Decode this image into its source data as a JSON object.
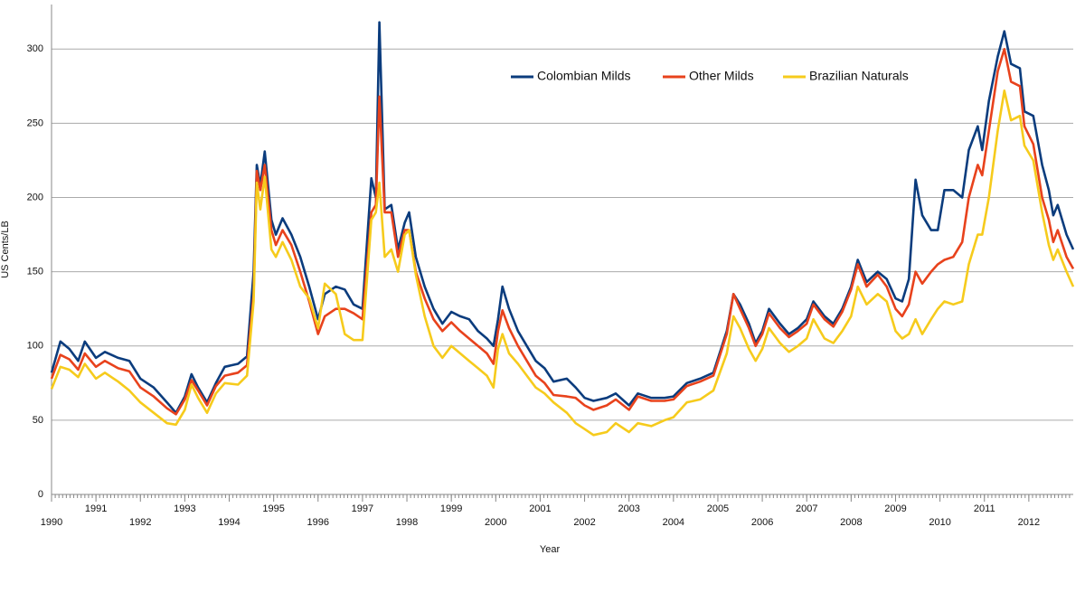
{
  "chart_data": {
    "type": "line",
    "y_label": "US Cents/LB",
    "x_label": "Year",
    "xlim": [
      1990,
      2013
    ],
    "ylim": [
      0,
      330
    ],
    "xticks": [
      1990,
      1991,
      1992,
      1993,
      1994,
      1995,
      1996,
      1997,
      1998,
      1999,
      2000,
      2001,
      2002,
      2003,
      2004,
      2005,
      2006,
      2007,
      2008,
      2009,
      2010,
      2011,
      2012
    ],
    "yticks": [
      0,
      50,
      100,
      150,
      200,
      250,
      300
    ],
    "grid": true,
    "x": [
      1990.0,
      1990.2,
      1990.4,
      1990.6,
      1990.75,
      1991.0,
      1991.2,
      1991.5,
      1991.75,
      1992.0,
      1992.3,
      1992.6,
      1992.8,
      1993.0,
      1993.15,
      1993.3,
      1993.5,
      1993.7,
      1993.9,
      1994.2,
      1994.4,
      1994.55,
      1994.62,
      1994.7,
      1994.8,
      1994.95,
      1995.05,
      1995.2,
      1995.4,
      1995.6,
      1995.8,
      1996.0,
      1996.15,
      1996.4,
      1996.6,
      1996.8,
      1997.0,
      1997.2,
      1997.3,
      1997.38,
      1997.5,
      1997.65,
      1997.8,
      1997.95,
      1998.05,
      1998.2,
      1998.4,
      1998.6,
      1998.8,
      1999.0,
      1999.2,
      1999.4,
      1999.6,
      1999.8,
      1999.95,
      2000.05,
      2000.15,
      2000.3,
      2000.5,
      2000.7,
      2000.9,
      2001.1,
      2001.3,
      2001.6,
      2001.8,
      2002.0,
      2002.2,
      2002.5,
      2002.7,
      2003.0,
      2003.2,
      2003.5,
      2003.8,
      2004.0,
      2004.3,
      2004.6,
      2004.9,
      2005.2,
      2005.35,
      2005.5,
      2005.7,
      2005.85,
      2006.0,
      2006.15,
      2006.4,
      2006.6,
      2006.8,
      2007.0,
      2007.15,
      2007.4,
      2007.6,
      2007.8,
      2008.0,
      2008.15,
      2008.35,
      2008.6,
      2008.8,
      2009.0,
      2009.15,
      2009.3,
      2009.45,
      2009.6,
      2009.8,
      2009.95,
      2010.1,
      2010.3,
      2010.5,
      2010.65,
      2010.85,
      2010.95,
      2011.1,
      2011.3,
      2011.45,
      2011.6,
      2011.8,
      2011.9,
      2012.1,
      2012.3,
      2012.45,
      2012.55,
      2012.65,
      2012.85,
      2013.0
    ],
    "series": [
      {
        "name": "Colombian Milds",
        "color": "#0b3c7d",
        "values": [
          82,
          103,
          98,
          90,
          103,
          92,
          96,
          92,
          90,
          78,
          72,
          62,
          55,
          66,
          81,
          72,
          62,
          75,
          86,
          88,
          93,
          150,
          222,
          208,
          231,
          185,
          175,
          186,
          175,
          160,
          140,
          118,
          135,
          140,
          138,
          128,
          125,
          213,
          200,
          318,
          192,
          195,
          165,
          183,
          190,
          160,
          140,
          125,
          115,
          123,
          120,
          118,
          110,
          105,
          100,
          118,
          140,
          125,
          110,
          100,
          90,
          85,
          76,
          78,
          72,
          65,
          63,
          65,
          68,
          60,
          68,
          65,
          65,
          66,
          75,
          78,
          82,
          110,
          135,
          128,
          115,
          102,
          110,
          125,
          115,
          108,
          112,
          118,
          130,
          120,
          115,
          125,
          140,
          158,
          143,
          150,
          145,
          132,
          130,
          145,
          212,
          188,
          178,
          178,
          205,
          205,
          200,
          232,
          248,
          232,
          265,
          295,
          312,
          290,
          287,
          258,
          255,
          222,
          205,
          188,
          195,
          175,
          165
        ]
      },
      {
        "name": "Other Milds",
        "color": "#e8421c",
        "values": [
          78,
          94,
          91,
          84,
          95,
          86,
          90,
          85,
          83,
          72,
          66,
          58,
          54,
          64,
          77,
          70,
          60,
          73,
          80,
          82,
          87,
          135,
          218,
          205,
          222,
          178,
          168,
          178,
          168,
          150,
          130,
          108,
          120,
          125,
          125,
          122,
          118,
          190,
          195,
          268,
          190,
          190,
          160,
          178,
          178,
          150,
          132,
          118,
          110,
          116,
          110,
          105,
          100,
          95,
          88,
          110,
          124,
          112,
          100,
          90,
          80,
          75,
          67,
          66,
          65,
          60,
          57,
          60,
          64,
          57,
          66,
          63,
          63,
          64,
          73,
          76,
          80,
          108,
          135,
          125,
          112,
          100,
          108,
          122,
          112,
          106,
          110,
          115,
          128,
          118,
          113,
          123,
          138,
          155,
          140,
          148,
          140,
          125,
          120,
          128,
          150,
          142,
          150,
          155,
          158,
          160,
          170,
          200,
          222,
          215,
          245,
          285,
          300,
          278,
          275,
          248,
          236,
          200,
          185,
          170,
          178,
          160,
          152
        ]
      },
      {
        "name": "Brazilian Naturals",
        "color": "#f6cb1c",
        "values": [
          71,
          86,
          84,
          79,
          88,
          78,
          82,
          76,
          70,
          62,
          55,
          48,
          47,
          57,
          74,
          65,
          55,
          68,
          75,
          74,
          80,
          130,
          210,
          192,
          214,
          165,
          160,
          170,
          158,
          140,
          132,
          112,
          142,
          135,
          108,
          104,
          104,
          185,
          190,
          210,
          160,
          165,
          150,
          175,
          178,
          148,
          120,
          100,
          92,
          100,
          95,
          90,
          85,
          80,
          72,
          98,
          108,
          95,
          88,
          80,
          72,
          68,
          62,
          55,
          48,
          44,
          40,
          42,
          48,
          42,
          48,
          46,
          50,
          52,
          62,
          64,
          70,
          95,
          120,
          112,
          98,
          90,
          98,
          112,
          102,
          96,
          100,
          105,
          118,
          105,
          102,
          110,
          120,
          140,
          128,
          135,
          130,
          110,
          105,
          108,
          118,
          108,
          118,
          125,
          130,
          128,
          130,
          155,
          175,
          175,
          200,
          245,
          272,
          252,
          255,
          235,
          225,
          190,
          168,
          158,
          165,
          150,
          140
        ]
      }
    ]
  }
}
